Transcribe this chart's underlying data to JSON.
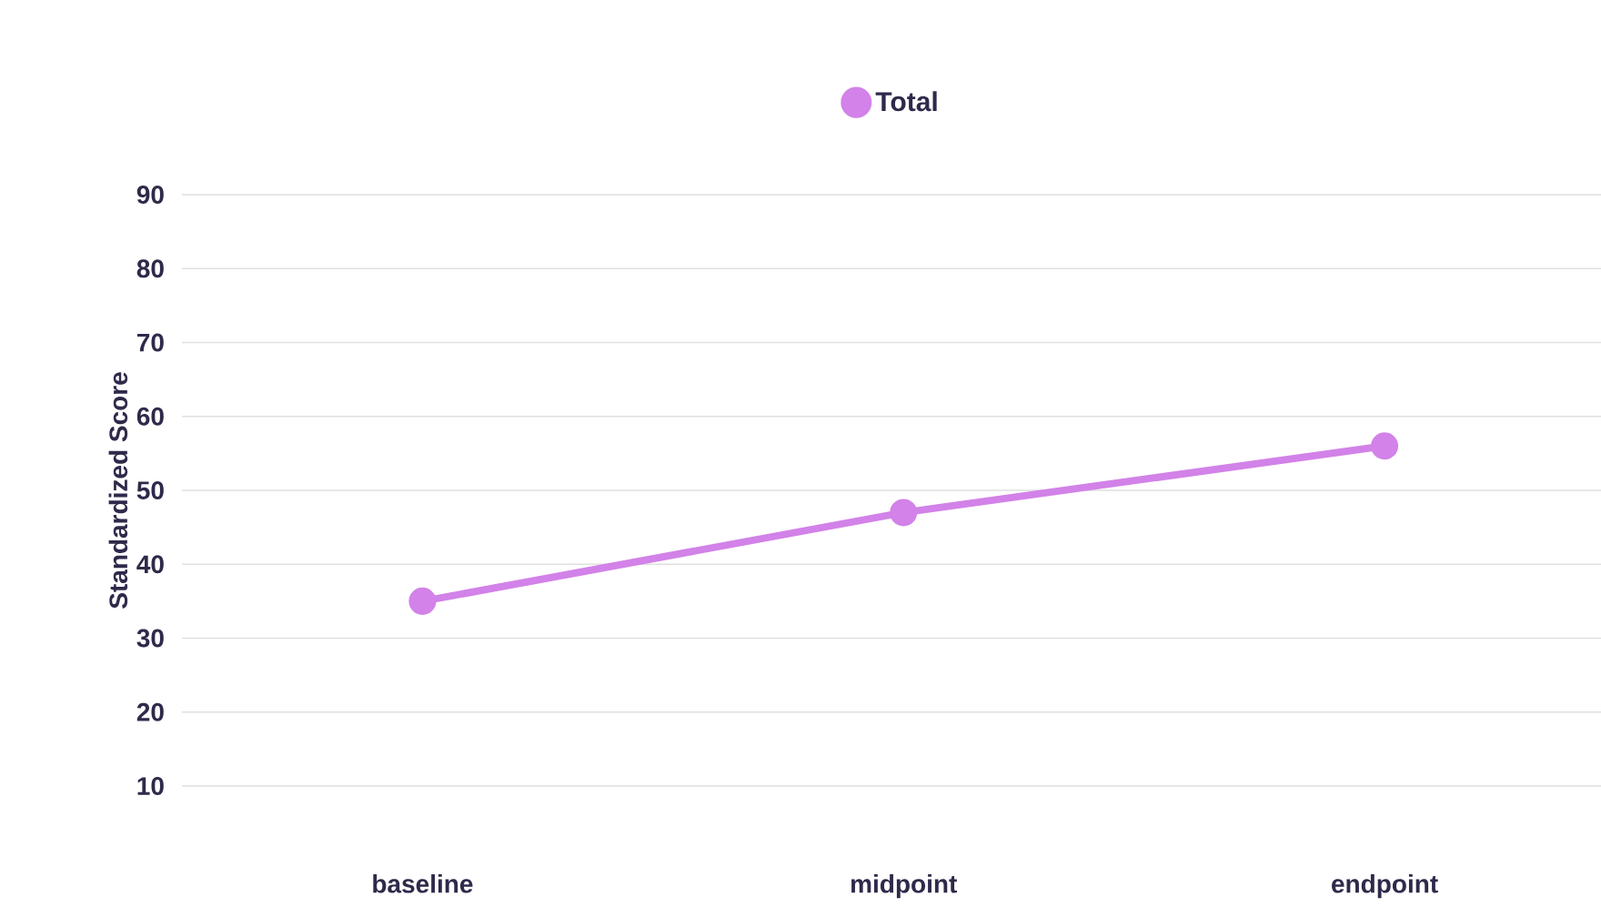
{
  "chart_data": {
    "type": "line",
    "ylabel": "Standardized Score",
    "categories": [
      "baseline",
      "midpoint",
      "endpoint"
    ],
    "series": [
      {
        "name": "Total",
        "color": "#d282e8",
        "values": [
          35,
          47,
          56
        ]
      }
    ],
    "ylim": [
      10,
      90
    ],
    "yticks": [
      10,
      20,
      30,
      40,
      50,
      60,
      70,
      80,
      90
    ],
    "grid": "y",
    "legend": "top",
    "marker": "circle",
    "line_style": "solid"
  }
}
